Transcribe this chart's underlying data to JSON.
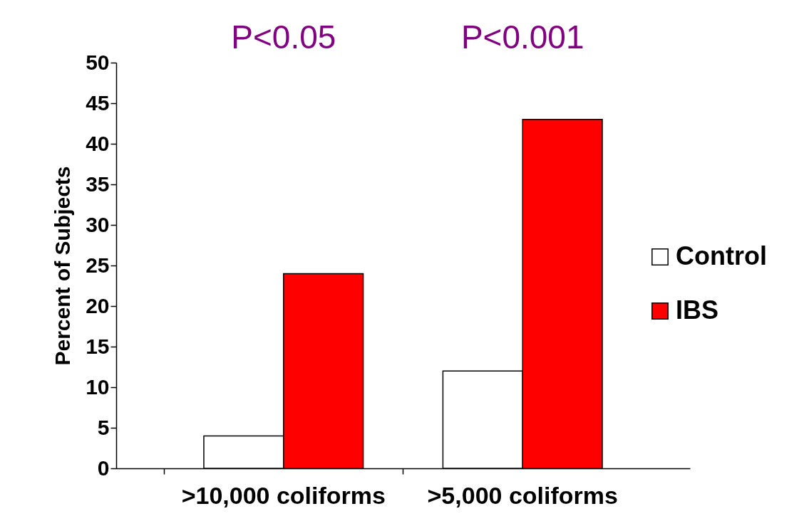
{
  "chart_data": {
    "type": "bar",
    "ylabel": "Percent of Subjects",
    "categories": [
      ">10,000 coliforms",
      ">5,000 coliforms"
    ],
    "series": [
      {
        "name": "Control",
        "color": "#ffffff",
        "values": [
          4,
          12
        ]
      },
      {
        "name": "IBS",
        "color": "#ff0000",
        "values": [
          24,
          43
        ]
      }
    ],
    "ylim": [
      0,
      50
    ],
    "yticks": [
      0,
      5,
      10,
      15,
      20,
      25,
      30,
      35,
      40,
      45,
      50
    ],
    "grid": false,
    "legend": "right",
    "annotations": [
      "P<0.05",
      "P<0.001"
    ]
  }
}
